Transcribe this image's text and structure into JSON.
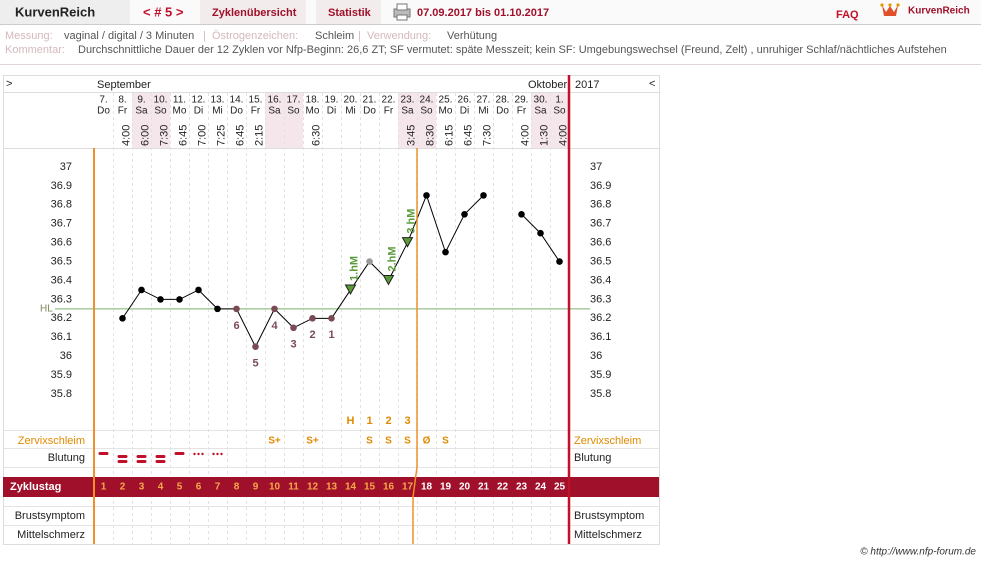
{
  "header": {
    "app": "KurvenReich",
    "cycle_nav": "< # 5 >",
    "tabs": [
      "Zyklenübersicht",
      "Statistik"
    ],
    "date_range": "07.09.2017 bis 01.10.2017",
    "faq": "FAQ",
    "logo": "KurvenReich"
  },
  "info": {
    "measure_label": "Messung:",
    "measure": "vaginal / digital / 3 Minuten",
    "separator": "|",
    "estrogen_label": "Östrogenzeichen:",
    "estrogen": "Schleim",
    "use_label": "Verwendung:",
    "use": "Verhütung",
    "comment_label": "Kommentar:",
    "comment": "Durchschnittliche Dauer der 12 Zyklen vor Nfp-Beginn: 26,6 ZT;   SF vermutet: späte Messzeit; kein SF: Umgebungswechsel (Freund, Zelt) , unruhiger Schlaf/nächtliches Aufstehen"
  },
  "chart_data": {
    "type": "line",
    "nav_next": ">",
    "nav_prev": "<",
    "month_start": "September",
    "month_end": "Oktober",
    "year": "2017",
    "categories": [
      "7.",
      "8.",
      "9.",
      "10.",
      "11.",
      "12.",
      "13.",
      "14.",
      "15.",
      "16.",
      "17.",
      "18.",
      "19.",
      "20.",
      "21.",
      "22.",
      "23.",
      "24.",
      "25.",
      "26.",
      "27.",
      "28.",
      "29.",
      "30.",
      "1."
    ],
    "weekdays": [
      "Do",
      "Fr",
      "Sa",
      "So",
      "Mo",
      "Di",
      "Mi",
      "Do",
      "Fr",
      "Sa",
      "So",
      "Mo",
      "Di",
      "Mi",
      "Do",
      "Fr",
      "Sa",
      "So",
      "Mo",
      "Di",
      "Mi",
      "Do",
      "Fr",
      "Sa",
      "So"
    ],
    "times": [
      null,
      "4:00",
      "6:00",
      "7:30",
      "6:45",
      "7:00",
      "7:25",
      "6:45",
      "2:15",
      null,
      null,
      "6:30",
      null,
      null,
      null,
      null,
      "3:45",
      "8:30",
      "6:15",
      "6:45",
      "7:30",
      null,
      "4:00",
      "1:30",
      "4:00"
    ],
    "values": [
      null,
      36.2,
      36.35,
      36.3,
      36.3,
      36.35,
      36.25,
      36.25,
      36.05,
      36.25,
      36.15,
      36.2,
      36.2,
      36.35,
      36.5,
      36.4,
      36.6,
      36.85,
      36.55,
      36.75,
      36.85,
      null,
      36.75,
      36.65,
      36.5
    ],
    "point_colors": [
      "#000",
      "#000",
      "#000",
      "#000",
      "#000",
      "#000",
      "#000",
      "#7a4a55",
      "#7a4a55",
      "#7a4a55",
      "#7a4a55",
      "#7a4a55",
      "#7a4a55",
      "#000",
      "#999",
      "#000",
      "#000",
      "#000",
      "#000",
      "#000",
      "#000",
      "#000",
      "#000",
      "#000",
      "#000"
    ],
    "low_labels": [
      null,
      null,
      null,
      null,
      null,
      null,
      null,
      "6",
      "5",
      "4",
      "3",
      "2",
      "1",
      null,
      null,
      null,
      null,
      null,
      null,
      null,
      null,
      null,
      null,
      null,
      null
    ],
    "high_labels": [
      null,
      null,
      null,
      null,
      null,
      null,
      null,
      null,
      null,
      null,
      null,
      null,
      null,
      "1.hM",
      null,
      "2.hM",
      "3.hM",
      null,
      null,
      null,
      null,
      null,
      null,
      null,
      null
    ],
    "peak_labels": [
      null,
      null,
      null,
      null,
      null,
      null,
      null,
      null,
      null,
      null,
      null,
      null,
      null,
      "H",
      "1",
      "2",
      "3",
      null,
      null,
      null,
      null,
      null,
      null,
      null,
      null
    ],
    "cervix": [
      null,
      null,
      null,
      null,
      null,
      null,
      null,
      null,
      null,
      "S+",
      null,
      "S+",
      null,
      null,
      "S",
      "S",
      "S",
      "Ø",
      "S",
      null,
      null,
      null,
      null,
      null,
      null
    ],
    "cycle_days": [
      1,
      2,
      3,
      4,
      5,
      6,
      7,
      8,
      9,
      10,
      11,
      12,
      13,
      14,
      15,
      16,
      17,
      18,
      19,
      20,
      21,
      22,
      23,
      24,
      25
    ],
    "shift_index": 17,
    "coverline": {
      "label": "HL",
      "value": 36.25
    },
    "ylim": [
      35.8,
      37
    ],
    "yticks": [
      35.8,
      35.9,
      36,
      36.1,
      36.2,
      36.3,
      36.4,
      36.5,
      36.6,
      36.7,
      36.8,
      36.9,
      37
    ],
    "rows": {
      "cervix": "Zervixschleim",
      "bleeding": "Blutung",
      "cycle_day": "Zyklustag",
      "breast": "Brustsymptom",
      "pain": "Mittelschmerz"
    }
  },
  "footer": "© http://www.nfp-forum.de"
}
